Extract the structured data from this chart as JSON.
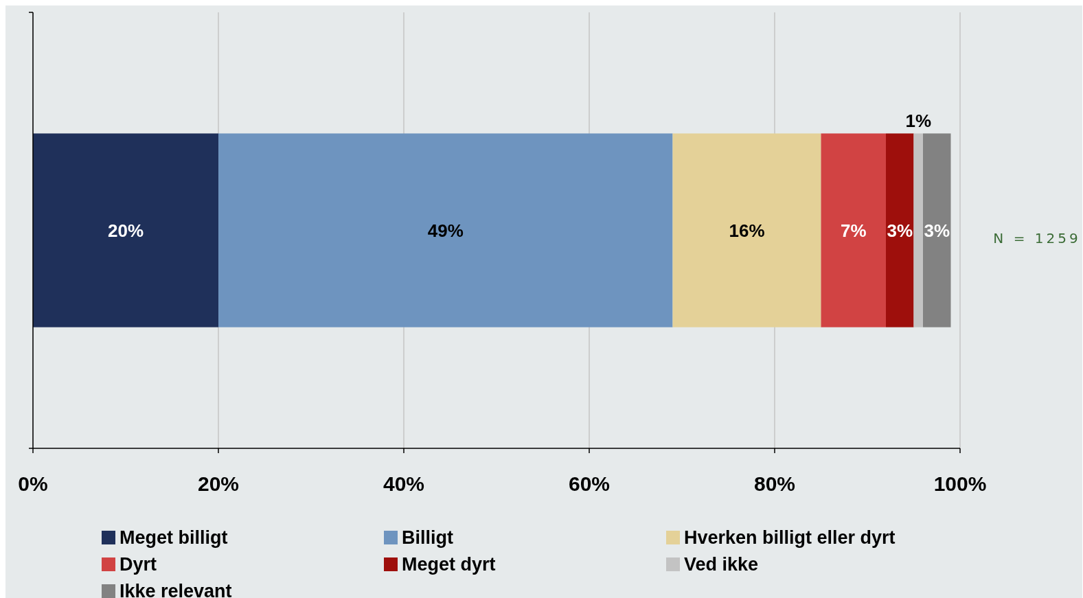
{
  "chart_data": {
    "type": "bar",
    "orientation": "horizontal",
    "stacked": true,
    "categories": [
      null
    ],
    "series": [
      {
        "name": "Meget billigt",
        "color": "#1f305a",
        "values": [
          20
        ],
        "value_labels": [
          "20%"
        ]
      },
      {
        "name": "Billigt",
        "color": "#6e94bf",
        "values": [
          49
        ],
        "value_labels": [
          "49%"
        ]
      },
      {
        "name": "Hverken billigt eller dyrt",
        "color": "#e4d198",
        "values": [
          16
        ],
        "value_labels": [
          "16%"
        ]
      },
      {
        "name": "Dyrt",
        "color": "#d14343",
        "values": [
          7
        ],
        "value_labels": [
          "7%"
        ]
      },
      {
        "name": "Meget dyrt",
        "color": "#9e0f0c",
        "values": [
          3
        ],
        "value_labels": [
          "3%"
        ]
      },
      {
        "name": "Ved ikke",
        "color": "#c3c3c3",
        "values": [
          1
        ],
        "value_labels": [
          "1%"
        ]
      },
      {
        "name": "Ikke relevant",
        "color": "#828282",
        "values": [
          3
        ],
        "value_labels": [
          "3%"
        ]
      }
    ],
    "xlim": [
      0,
      100
    ],
    "xticks": [
      {
        "value": 0,
        "label": "0%"
      },
      {
        "value": 20,
        "label": "20%"
      },
      {
        "value": 40,
        "label": "40%"
      },
      {
        "value": 60,
        "label": "60%"
      },
      {
        "value": 80,
        "label": "80%"
      },
      {
        "value": 100,
        "label": "100%"
      }
    ],
    "grid": "x",
    "legend": "bottom",
    "annotations": [
      "N = 1259"
    ]
  }
}
